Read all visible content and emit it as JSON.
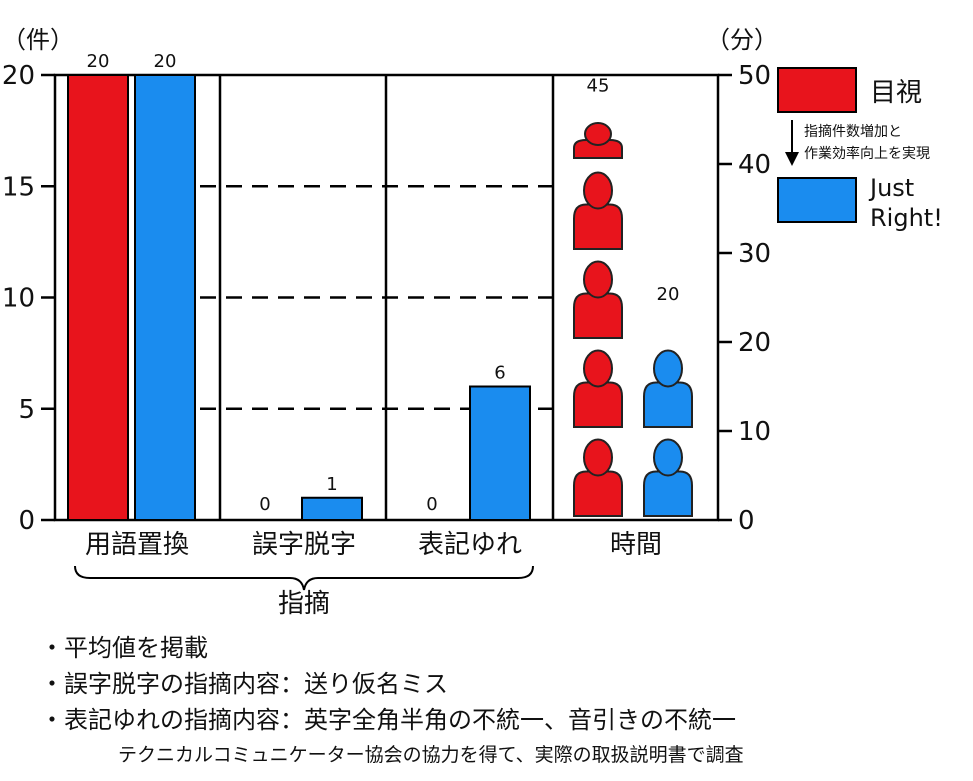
{
  "chart_data": {
    "type": "bar",
    "left_axis": {
      "unit": "（件）",
      "ylim": [
        0,
        20
      ],
      "ticks": [
        0,
        5,
        10,
        15,
        20
      ]
    },
    "right_axis": {
      "unit": "（分）",
      "ylim": [
        0,
        50
      ],
      "ticks": [
        0,
        10,
        20,
        30,
        40,
        50
      ]
    },
    "categories": [
      "用語置換",
      "誤字脱字",
      "表記ゆれ",
      "時間"
    ],
    "group_label": "指摘",
    "series": [
      {
        "name": "目視",
        "color": "#e8141c",
        "values": [
          20,
          0,
          0,
          45
        ]
      },
      {
        "name": "Just Right!",
        "color": "#1a8cef",
        "values": [
          20,
          1,
          6,
          20
        ]
      }
    ],
    "data_labels": {
      "目視": [
        "20",
        "0",
        "0",
        "45"
      ],
      "Just Right!": [
        "20",
        "1",
        "6",
        "20"
      ]
    },
    "legend": {
      "placement": "top-right",
      "items": [
        {
          "label": "目視",
          "color": "#e8141c"
        },
        {
          "label": "Just Right!",
          "color": "#1a8cef"
        }
      ],
      "arrow_text": [
        "指摘件数増加と",
        "作業効率向上を実現"
      ]
    },
    "grid": "dashed",
    "time_representation": "person-icons"
  },
  "notes": [
    "・平均値を掲載",
    "・誤字脱字の指摘内容：送り仮名ミス",
    "・表記ゆれの指摘内容：英字全角半角の不統一、音引きの不統一"
  ],
  "footer": "テクニカルコミュニケーター協会の協力を得て、実際の取扱説明書で調査"
}
